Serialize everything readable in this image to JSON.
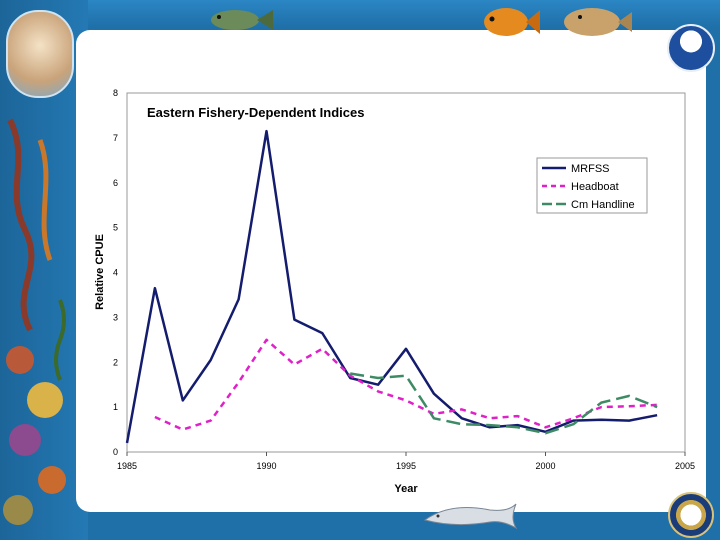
{
  "chart_data": {
    "type": "line",
    "title": "Eastern Fishery-Dependent Indices",
    "xlabel": "Year",
    "ylabel": "Relative CPUE",
    "xlim": [
      1985,
      2005
    ],
    "ylim": [
      0,
      8
    ],
    "x_ticks": [
      "1985",
      "1990",
      "1995",
      "2000",
      "2005"
    ],
    "y_ticks": [
      "0",
      "1",
      "2",
      "3",
      "4",
      "5",
      "6",
      "7",
      "8"
    ],
    "grid": false,
    "legend_position": "top-right",
    "series": [
      {
        "name": "MRFSS",
        "color": "#141c6e",
        "dash": "solid",
        "x": [
          1985,
          1986,
          1987,
          1988,
          1989,
          1990,
          1991,
          1992,
          1993,
          1994,
          1995,
          1996,
          1997,
          1998,
          1999,
          2000,
          2001,
          2002,
          2003,
          2004
        ],
        "y": [
          0.2,
          3.65,
          1.15,
          2.05,
          3.4,
          7.15,
          2.95,
          2.65,
          1.65,
          1.5,
          2.3,
          1.3,
          0.75,
          0.55,
          0.6,
          0.45,
          0.7,
          0.72,
          0.7,
          0.82
        ]
      },
      {
        "name": "Headboat",
        "color": "#e020c8",
        "dash": "dash",
        "x": [
          1986,
          1987,
          1988,
          1989,
          1990,
          1991,
          1992,
          1993,
          1994,
          1995,
          1996,
          1997,
          1998,
          1999,
          2000,
          2001,
          2002,
          2003,
          2004
        ],
        "y": [
          0.78,
          0.5,
          0.7,
          1.55,
          2.5,
          1.95,
          2.3,
          1.7,
          1.35,
          1.15,
          0.85,
          0.95,
          0.75,
          0.8,
          0.55,
          0.75,
          1.0,
          1.02,
          1.05
        ]
      },
      {
        "name": "Cm Handline",
        "color": "#3e8a64",
        "dash": "longdash",
        "x": [
          1993,
          1994,
          1995,
          1996,
          1997,
          1998,
          1999,
          2000,
          2001,
          2002,
          2003,
          2004
        ],
        "y": [
          1.75,
          1.65,
          1.7,
          0.75,
          0.62,
          0.6,
          0.55,
          0.42,
          0.62,
          1.1,
          1.25,
          1.0
        ]
      }
    ]
  },
  "decor": {
    "left_icon": "hands-holding-fish-emblem",
    "top_right_icon": "noaa-logo",
    "bottom_right_icon": "department-of-commerce-seal",
    "bottom_icon": "dolphin-illustration"
  }
}
